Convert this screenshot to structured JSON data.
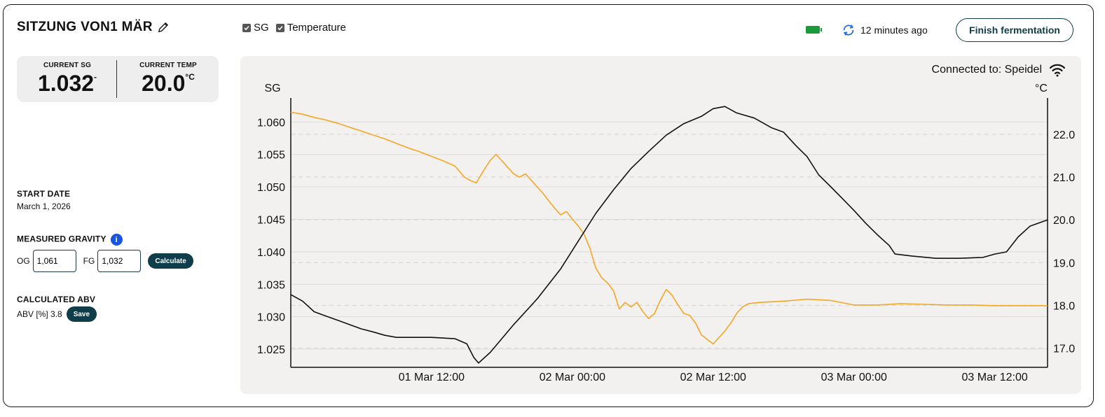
{
  "header": {
    "title": "SITZUNG VON1 MÄR",
    "checkboxes": [
      {
        "label": "SG",
        "checked": true
      },
      {
        "label": "Temperature",
        "checked": true
      }
    ],
    "battery_color": "#1a9a3a",
    "last_update": "12 minutes ago",
    "finish_label": "Finish fermentation"
  },
  "stats": {
    "sg_label": "CURRENT SG",
    "sg_value": "1.032",
    "sg_unit": "-",
    "temp_label": "CURRENT TEMP",
    "temp_value": "20.0",
    "temp_unit": "°C"
  },
  "start": {
    "label": "START DATE",
    "value": "March 1, 2026"
  },
  "gravity": {
    "label": "MEASURED GRAVITY",
    "og_label": "OG",
    "og_value": "1,061",
    "fg_label": "FG",
    "fg_value": "1,032",
    "calc_label": "Calculate"
  },
  "abv": {
    "label": "CALCULATED ABV",
    "text": "ABV [%] 3.8",
    "save_label": "Save"
  },
  "connection": {
    "text": "Connected to: Speidel"
  },
  "chart_data": {
    "type": "line",
    "left_axis_title": "SG",
    "right_axis_title": "°C",
    "x_range_hours": [
      0,
      64.5
    ],
    "x_ticks": [
      {
        "label": "01 Mar 12:00",
        "hour": 12
      },
      {
        "label": "02 Mar 00:00",
        "hour": 24
      },
      {
        "label": "02 Mar 12:00",
        "hour": 36
      },
      {
        "label": "03 Mar 00:00",
        "hour": 48
      },
      {
        "label": "03 Mar 12:00",
        "hour": 60
      }
    ],
    "y_left": {
      "range": [
        1.0222,
        1.0637
      ],
      "ticks": [
        "1.025",
        "1.030",
        "1.035",
        "1.040",
        "1.045",
        "1.050",
        "1.055",
        "1.060"
      ]
    },
    "y_right": {
      "range": [
        16.55,
        22.85
      ],
      "ticks": [
        "17.0",
        "18.0",
        "19.0",
        "20.0",
        "21.0",
        "22.0"
      ]
    },
    "grid": true,
    "series": [
      {
        "name": "SG",
        "color": "#f5a623",
        "axis": "left",
        "points": [
          [
            0,
            1.0615
          ],
          [
            1,
            1.0612
          ],
          [
            2,
            1.0607
          ],
          [
            3,
            1.0603
          ],
          [
            4,
            1.0598
          ],
          [
            5,
            1.0592
          ],
          [
            6,
            1.0586
          ],
          [
            7,
            1.058
          ],
          [
            8,
            1.0574
          ],
          [
            9,
            1.0567
          ],
          [
            10,
            1.056
          ],
          [
            11,
            1.0554
          ],
          [
            12,
            1.0547
          ],
          [
            13,
            1.054
          ],
          [
            14,
            1.0532
          ],
          [
            14.8,
            1.0515
          ],
          [
            15.3,
            1.051
          ],
          [
            15.8,
            1.0506
          ],
          [
            16.5,
            1.0527
          ],
          [
            17,
            1.0541
          ],
          [
            17.5,
            1.055
          ],
          [
            18,
            1.054
          ],
          [
            18.5,
            1.053
          ],
          [
            19,
            1.052
          ],
          [
            19.5,
            1.0515
          ],
          [
            20,
            1.052
          ],
          [
            20.5,
            1.051
          ],
          [
            21,
            1.05
          ],
          [
            21.5,
            1.049
          ],
          [
            22,
            1.0478
          ],
          [
            22.5,
            1.0467
          ],
          [
            23,
            1.0457
          ],
          [
            23.5,
            1.0462
          ],
          [
            24,
            1.045
          ],
          [
            24.5,
            1.044
          ],
          [
            25,
            1.0427
          ],
          [
            25.5,
            1.0405
          ],
          [
            26,
            1.0375
          ],
          [
            26.5,
            1.036
          ],
          [
            27,
            1.0352
          ],
          [
            27.5,
            1.034
          ],
          [
            28,
            1.0312
          ],
          [
            28.5,
            1.0322
          ],
          [
            29,
            1.0315
          ],
          [
            29.5,
            1.0322
          ],
          [
            30,
            1.0308
          ],
          [
            30.5,
            1.0297
          ],
          [
            31,
            1.0305
          ],
          [
            31.5,
            1.0325
          ],
          [
            32,
            1.0342
          ],
          [
            32.5,
            1.0333
          ],
          [
            33,
            1.0318
          ],
          [
            33.5,
            1.0305
          ],
          [
            34,
            1.0302
          ],
          [
            34.5,
            1.029
          ],
          [
            35,
            1.0272
          ],
          [
            35.5,
            1.0265
          ],
          [
            36,
            1.0258
          ],
          [
            36.5,
            1.0268
          ],
          [
            37,
            1.0278
          ],
          [
            37.5,
            1.029
          ],
          [
            38,
            1.0305
          ],
          [
            38.5,
            1.0315
          ],
          [
            39,
            1.032
          ],
          [
            40,
            1.0322
          ],
          [
            42,
            1.0324
          ],
          [
            44,
            1.0327
          ],
          [
            46,
            1.0325
          ],
          [
            48,
            1.0318
          ],
          [
            50,
            1.0318
          ],
          [
            52,
            1.032
          ],
          [
            54,
            1.0319
          ],
          [
            56,
            1.0318
          ],
          [
            58,
            1.0318
          ],
          [
            60,
            1.0317
          ],
          [
            62,
            1.0317
          ],
          [
            64.5,
            1.0317
          ]
        ]
      },
      {
        "name": "Temperature",
        "color": "#111111",
        "axis": "right",
        "points": [
          [
            0,
            18.25
          ],
          [
            1,
            18.1
          ],
          [
            2,
            17.85
          ],
          [
            3,
            17.75
          ],
          [
            4,
            17.65
          ],
          [
            5,
            17.55
          ],
          [
            6,
            17.45
          ],
          [
            7,
            17.38
          ],
          [
            8,
            17.3
          ],
          [
            9,
            17.25
          ],
          [
            10,
            17.25
          ],
          [
            12,
            17.25
          ],
          [
            14,
            17.22
          ],
          [
            15,
            17.1
          ],
          [
            15.6,
            16.78
          ],
          [
            16,
            16.65
          ],
          [
            17,
            16.9
          ],
          [
            19,
            17.55
          ],
          [
            21,
            18.15
          ],
          [
            23,
            18.85
          ],
          [
            24.5,
            19.5
          ],
          [
            26,
            20.15
          ],
          [
            27.5,
            20.7
          ],
          [
            29,
            21.2
          ],
          [
            30.5,
            21.6
          ],
          [
            32,
            21.98
          ],
          [
            33.5,
            22.25
          ],
          [
            35,
            22.42
          ],
          [
            36,
            22.6
          ],
          [
            37,
            22.65
          ],
          [
            38,
            22.5
          ],
          [
            39.5,
            22.38
          ],
          [
            41,
            22.15
          ],
          [
            42,
            22.05
          ],
          [
            43,
            21.75
          ],
          [
            44,
            21.48
          ],
          [
            45,
            21.05
          ],
          [
            46,
            20.78
          ],
          [
            47,
            20.5
          ],
          [
            48,
            20.22
          ],
          [
            49,
            19.92
          ],
          [
            50,
            19.65
          ],
          [
            51,
            19.4
          ],
          [
            51.5,
            19.2
          ],
          [
            53,
            19.15
          ],
          [
            55,
            19.1
          ],
          [
            57,
            19.1
          ],
          [
            59,
            19.12
          ],
          [
            60,
            19.2
          ],
          [
            61,
            19.25
          ],
          [
            62,
            19.6
          ],
          [
            63,
            19.85
          ],
          [
            64.5,
            20.0
          ]
        ]
      }
    ]
  }
}
